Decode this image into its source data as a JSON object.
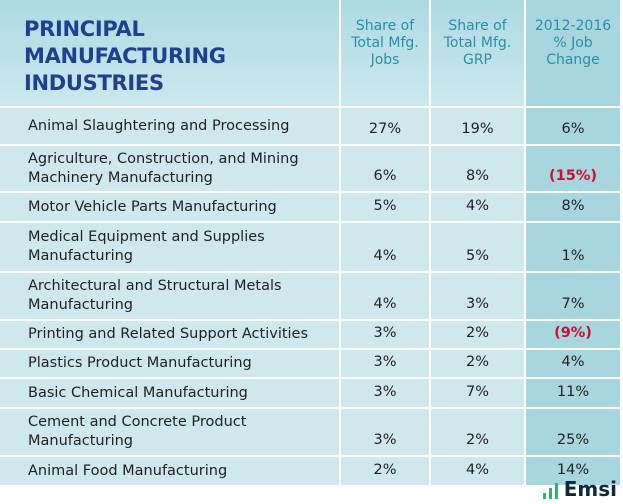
{
  "table": {
    "title": "PRINCIPAL MANUFACTURING INDUSTRIES",
    "columns": [
      "Share of Total Mfg. Jobs",
      "Share of Total Mfg. GRP",
      "2012-2016 % Job Change"
    ],
    "rows": [
      [
        "Animal Slaughtering and Processing",
        "27%",
        "19%",
        "6%"
      ],
      [
        "Agriculture, Construction, and Mining Machinery Manufacturing",
        "6%",
        "8%",
        "(15%)"
      ],
      [
        "Motor Vehicle Parts Manufacturing",
        "5%",
        "4%",
        "8%"
      ],
      [
        "Medical Equipment and Supplies Manufacturing",
        "4%",
        "5%",
        "1%"
      ],
      [
        "Architectural and Structural Metals Manufacturing",
        "4%",
        "3%",
        "7%"
      ],
      [
        "Printing and Related Support Activities",
        "3%",
        "2%",
        "(9%)"
      ],
      [
        "Plastics Product Manufacturing",
        "3%",
        "2%",
        "4%"
      ],
      [
        "Basic Chemical Manufacturing",
        "3%",
        "7%",
        "11%"
      ],
      [
        "Cement and Concrete Product Manufacturing",
        "3%",
        "2%",
        "25%"
      ],
      [
        "Animal Food Manufacturing",
        "2%",
        "4%",
        "14%"
      ]
    ],
    "negative_color": "#c8102e"
  },
  "footer": {
    "brand": "Emsi"
  }
}
